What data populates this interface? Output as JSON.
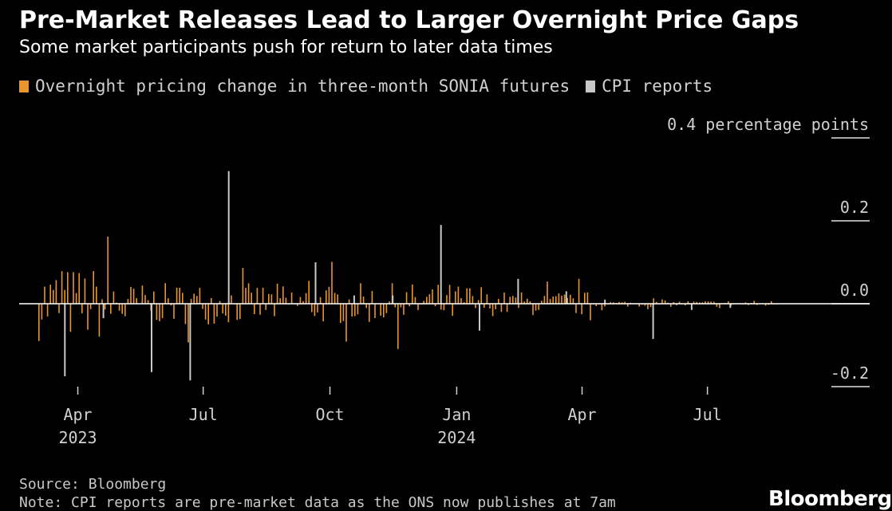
{
  "chart_data": {
    "type": "bar",
    "title": "Pre-Market Releases Lead to Larger Overnight Price Gaps",
    "subtitle": "Some market participants push for return to later data times",
    "legend": [
      {
        "label": "Overnight pricing change in three-month SONIA futures",
        "color": "#e8952d"
      },
      {
        "label": "CPI reports",
        "color": "#c8c8c8"
      }
    ],
    "y_unit_label": "0.4 percentage points",
    "ylim": [
      -0.2,
      0.4
    ],
    "y_ticks": [
      {
        "value": 0.4,
        "label": "0.4 percentage points"
      },
      {
        "value": 0.2,
        "label": "0.2"
      },
      {
        "value": 0.0,
        "label": "0.0"
      },
      {
        "value": -0.2,
        "label": "-0.2"
      }
    ],
    "x_ticks": [
      {
        "date": "2023-04-01",
        "label": "Apr",
        "year": "2023"
      },
      {
        "date": "2023-07-01",
        "label": "Jul",
        "year": ""
      },
      {
        "date": "2023-10-01",
        "label": "Oct",
        "year": ""
      },
      {
        "date": "2024-01-01",
        "label": "Jan",
        "year": "2024"
      },
      {
        "date": "2024-04-01",
        "label": "Apr",
        "year": ""
      },
      {
        "date": "2024-07-01",
        "label": "Jul",
        "year": ""
      }
    ],
    "cpi_series": [
      {
        "date": "2023-03-22",
        "value": -0.175
      },
      {
        "date": "2023-04-19",
        "value": -0.035
      },
      {
        "date": "2023-05-24",
        "value": -0.165
      },
      {
        "date": "2023-06-21",
        "value": -0.185
      },
      {
        "date": "2023-07-19",
        "value": 0.32
      },
      {
        "date": "2023-09-20",
        "value": 0.1
      },
      {
        "date": "2023-10-18",
        "value": 0.02
      },
      {
        "date": "2023-11-15",
        "value": 0.02
      },
      {
        "date": "2023-12-20",
        "value": 0.19
      },
      {
        "date": "2024-01-17",
        "value": -0.065
      },
      {
        "date": "2024-02-14",
        "value": 0.06
      },
      {
        "date": "2024-03-20",
        "value": 0.03
      },
      {
        "date": "2024-04-17",
        "value": 0.01
      },
      {
        "date": "2024-05-22",
        "value": -0.085
      },
      {
        "date": "2024-06-19",
        "value": -0.015
      },
      {
        "date": "2024-07-17",
        "value": -0.01
      }
    ]
  },
  "footer": {
    "source": "Source: Bloomberg",
    "note": "Note: CPI reports are pre-market data as the ONS now publishes at 7am"
  },
  "brand": "Bloomberg"
}
